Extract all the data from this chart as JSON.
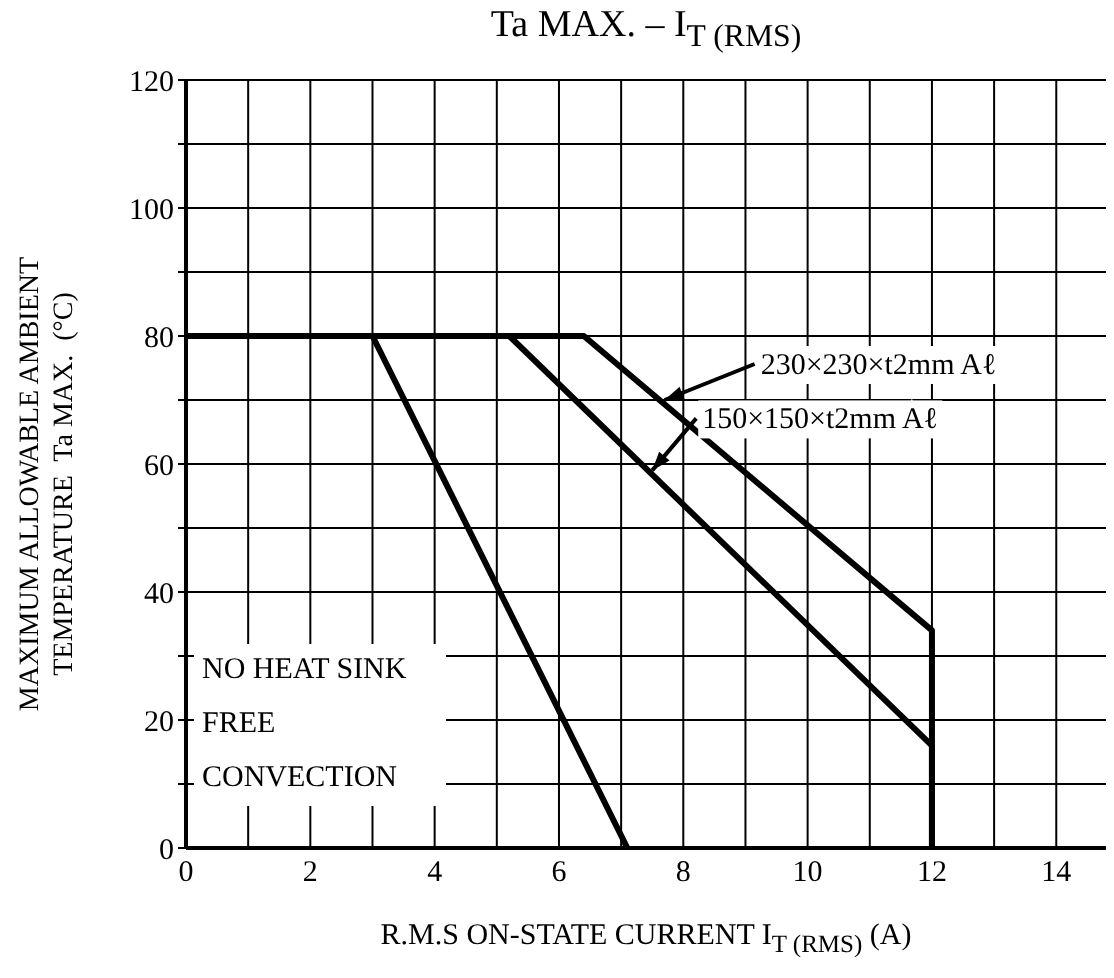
{
  "chart_data": {
    "type": "line",
    "title": "Ta MAX. – I$_{T (RMS)}$",
    "xlabel": "R.M.S ON-STATE CURRENT  I$_{T (RMS)}$  (A)",
    "ylabel": "MAXIMUM ALLOWABLE AMBIENT\nTEMPERATURE  Ta MAX.  (°C)",
    "xlim": [
      0,
      14.8
    ],
    "ylim": [
      0,
      120
    ],
    "xticks": [
      0,
      {
        "value": 1,
        "label": null
      },
      2,
      {
        "value": 3,
        "label": null
      },
      4,
      {
        "value": 5,
        "label": null
      },
      6,
      {
        "value": 7,
        "label": null
      },
      8,
      {
        "value": 9,
        "label": null
      },
      10,
      {
        "value": 11,
        "label": null
      },
      12,
      {
        "value": 13,
        "label": null
      },
      14
    ],
    "yticks": [
      0,
      {
        "value": 10,
        "label": null
      },
      20,
      {
        "value": 30,
        "label": null
      },
      40,
      {
        "value": 50,
        "label": null
      },
      60,
      {
        "value": 70,
        "label": null
      },
      80,
      {
        "value": 90,
        "label": null
      },
      100,
      {
        "value": 110,
        "label": null
      },
      120
    ],
    "grid": true,
    "marker": "none",
    "line_style": "solid",
    "series": [
      {
        "color": "#000000",
        "x": [
          0,
          3,
          7.1
        ],
        "values": [
          80,
          80,
          0
        ]
      },
      {
        "color": "#000000",
        "x": [
          0,
          5.2,
          12,
          12
        ],
        "values": [
          80,
          80,
          16,
          0
        ]
      },
      {
        "color": "#000000",
        "x": [
          0,
          6.4,
          12,
          12
        ],
        "values": [
          80,
          80,
          34,
          0
        ]
      }
    ],
    "annotations": [
      {
        "text": "230×230×t2mm Aℓ",
        "x": 7.7,
        "y": 70
      },
      {
        "text": "150×150×t2mm Aℓ",
        "x": 7.5,
        "y": 59
      },
      "NO HEAT SINK\nFREE\nCONVECTION"
    ]
  }
}
